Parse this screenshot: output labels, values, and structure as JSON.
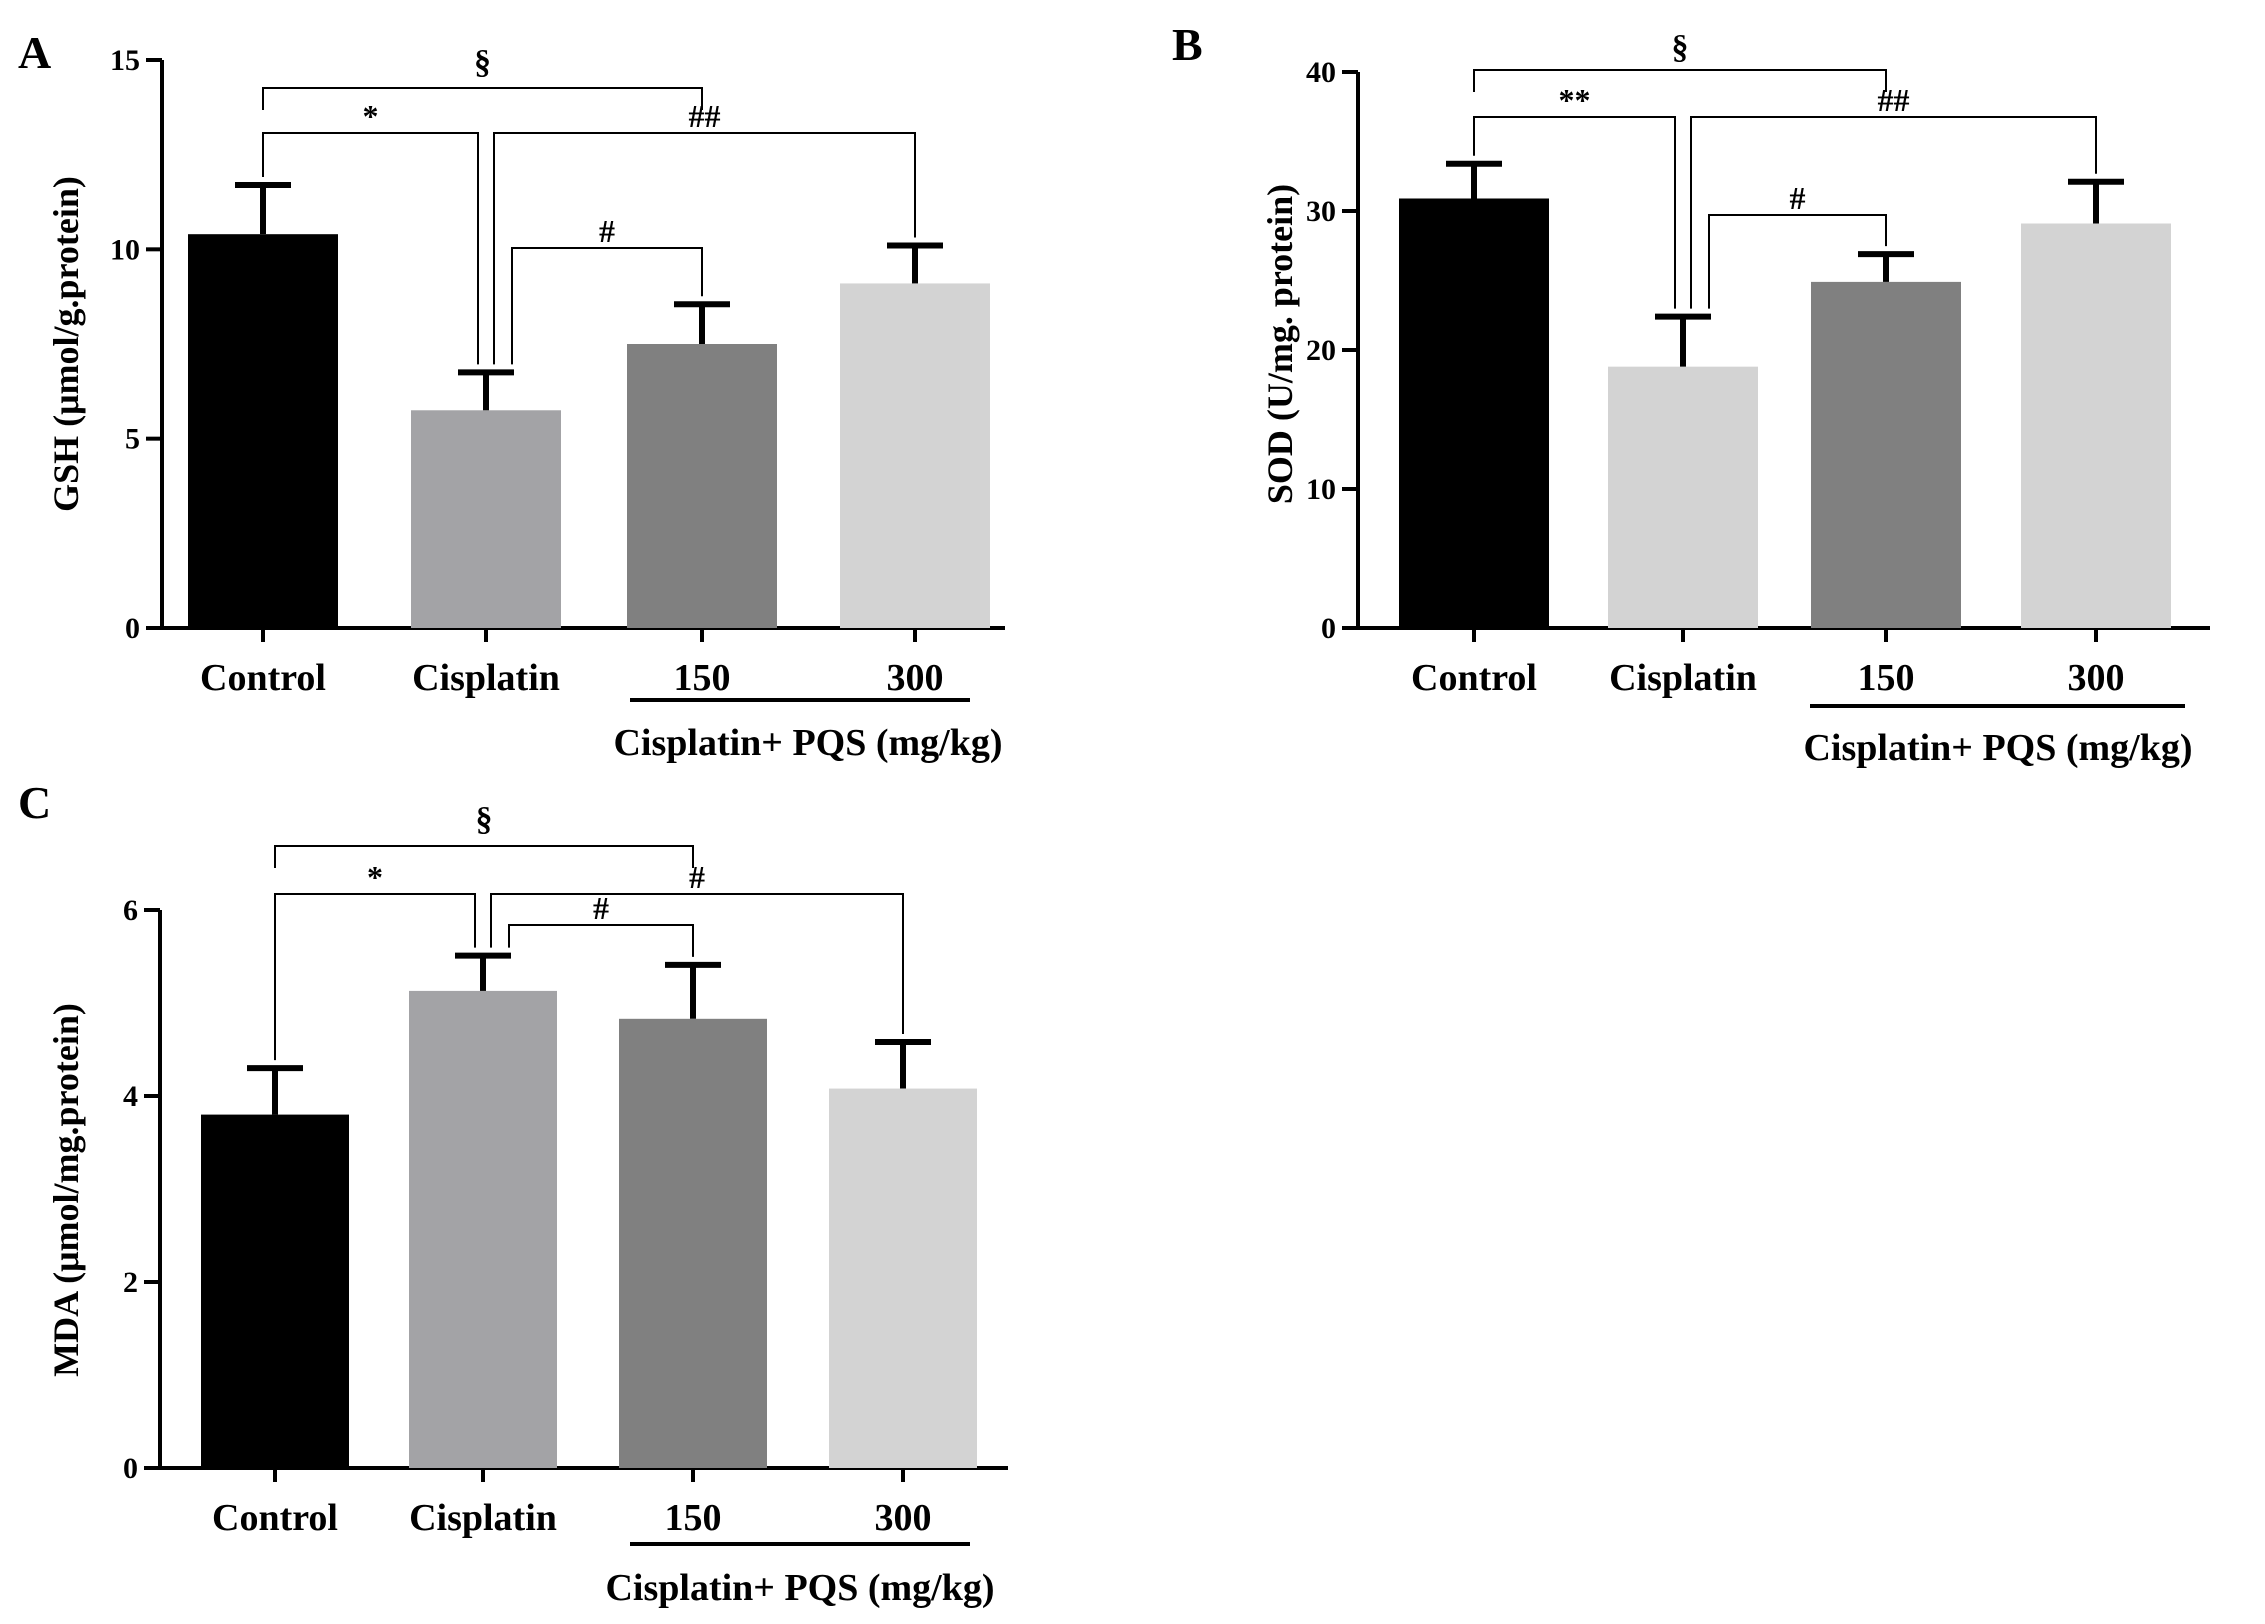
{
  "figure": {
    "shared_group_label": "Cisplatin+ PQS (mg/kg)"
  },
  "chart_data": [
    {
      "panel": "A",
      "type": "bar",
      "ylabel": "GSH (μmol/g.protein)",
      "ylim": [
        0,
        15
      ],
      "yticks": [
        0,
        5,
        10,
        15
      ],
      "ytick_labels": [
        "0",
        "5",
        "10",
        "15"
      ],
      "categories": [
        "Control",
        "Cisplatin",
        "150",
        "300"
      ],
      "values": [
        10.4,
        5.75,
        7.5,
        9.1
      ],
      "errors": [
        1.3,
        1.0,
        1.05,
        1.0
      ],
      "colors": [
        "#000000",
        "#a3a3a6",
        "#808080",
        "#d3d3d3"
      ],
      "group_label": "Cisplatin+ PQS (mg/kg)",
      "annotations": [
        {
          "label": "§",
          "from": 0,
          "to": 2,
          "level": 0
        },
        {
          "label": "*",
          "from": 0,
          "to": 1,
          "level": 1
        },
        {
          "label": "##",
          "from": 1,
          "to": 3,
          "level": 1
        },
        {
          "label": "#",
          "from": 1,
          "to": 2,
          "level": 2
        }
      ]
    },
    {
      "panel": "B",
      "type": "bar",
      "ylabel": "SOD (U/mg. protein)",
      "ylim": [
        0,
        40
      ],
      "yticks": [
        0,
        10,
        20,
        30,
        40
      ],
      "ytick_labels": [
        "0",
        "10",
        "20",
        "30",
        "40"
      ],
      "categories": [
        "Control",
        "Cisplatin",
        "150",
        "300"
      ],
      "values": [
        30.9,
        18.8,
        24.9,
        29.1
      ],
      "errors": [
        2.5,
        3.6,
        2.0,
        3.0
      ],
      "colors": [
        "#000000",
        "#d3d3d3",
        "#808080",
        "#d3d3d3"
      ],
      "group_label": "Cisplatin+ PQS (mg/kg)",
      "annotations": [
        {
          "label": "§",
          "from": 0,
          "to": 2,
          "level": 0
        },
        {
          "label": "**",
          "from": 0,
          "to": 1,
          "level": 1
        },
        {
          "label": "##",
          "from": 1,
          "to": 3,
          "level": 1
        },
        {
          "label": "#",
          "from": 1,
          "to": 2,
          "level": 2
        }
      ]
    },
    {
      "panel": "C",
      "type": "bar",
      "ylabel": "MDA (μmol/mg.protein)",
      "ylim": [
        0,
        6
      ],
      "yticks": [
        0,
        2,
        4,
        6
      ],
      "ytick_labels": [
        "0",
        "2",
        "4",
        "6"
      ],
      "categories": [
        "Control",
        "Cisplatin",
        "150",
        "300"
      ],
      "values": [
        3.8,
        5.13,
        4.83,
        4.08
      ],
      "errors": [
        0.5,
        0.38,
        0.58,
        0.5
      ],
      "colors": [
        "#000000",
        "#a3a3a6",
        "#808080",
        "#d3d3d3"
      ],
      "group_label": "Cisplatin+ PQS (mg/kg)",
      "annotations": [
        {
          "label": "§",
          "from": 0,
          "to": 2,
          "level": 0
        },
        {
          "label": "*",
          "from": 0,
          "to": 1,
          "level": 1
        },
        {
          "label": "#",
          "from": 1,
          "to": 3,
          "level": 1
        },
        {
          "label": "#",
          "from": 1,
          "to": 2,
          "level": 2
        }
      ]
    }
  ]
}
